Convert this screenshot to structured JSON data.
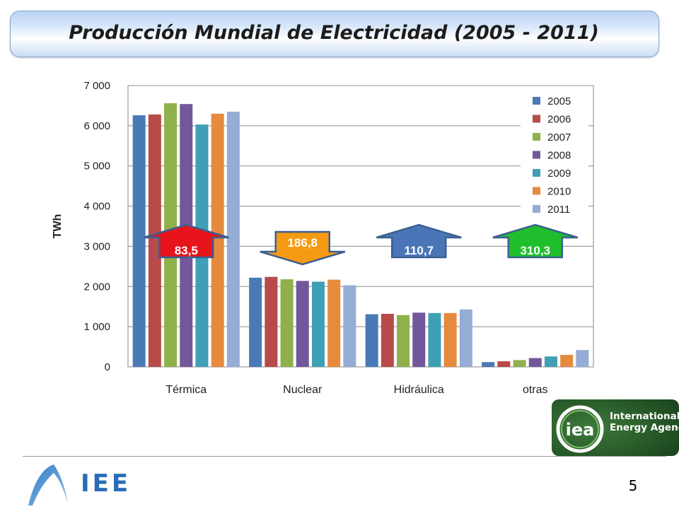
{
  "page": {
    "title": "Producción Mundial de Electricidad  (2005 - 2011)",
    "page_number": "5"
  },
  "logos": {
    "iea_name_line1": "International",
    "iea_name_line2": "Energy Agency",
    "iea_mark": "iea",
    "iee_mark": "IEE"
  },
  "chart_data": {
    "type": "bar",
    "categories": [
      "Térmica",
      "Nuclear",
      "Hidráulica",
      "otras"
    ],
    "ylabel": "TWh",
    "ylim": [
      0,
      7000
    ],
    "yticks": [
      0,
      1000,
      2000,
      3000,
      4000,
      5000,
      6000,
      7000
    ],
    "ytick_labels": [
      "0",
      "1 000",
      "2 000",
      "3 000",
      "4 000",
      "5 000",
      "6 000",
      "7 000"
    ],
    "grid": true,
    "legend_position": "top-right",
    "series": [
      {
        "name": "2005",
        "color": "#4a7ab5",
        "values": [
          6260,
          2220,
          1310,
          120
        ]
      },
      {
        "name": "2006",
        "color": "#b84a4a",
        "values": [
          6280,
          2240,
          1320,
          140
        ]
      },
      {
        "name": "2007",
        "color": "#8fb04a",
        "values": [
          6560,
          2180,
          1290,
          170
        ]
      },
      {
        "name": "2008",
        "color": "#72589a",
        "values": [
          6540,
          2140,
          1350,
          220
        ]
      },
      {
        "name": "2009",
        "color": "#3f9fb5",
        "values": [
          6030,
          2120,
          1340,
          260
        ]
      },
      {
        "name": "2010",
        "color": "#e68a3e",
        "values": [
          6300,
          2170,
          1340,
          300
        ]
      },
      {
        "name": "2011",
        "color": "#95acd4",
        "values": [
          6350,
          2030,
          1430,
          420
        ]
      }
    ],
    "annotations": [
      {
        "category": "Térmica",
        "text": "83,5",
        "direction": "up",
        "color": "#e8141b"
      },
      {
        "category": "Nuclear",
        "text": "186,8",
        "direction": "down",
        "color": "#f59a12"
      },
      {
        "category": "Hidráulica",
        "text": "110,7",
        "direction": "up",
        "color": "#4a76b8"
      },
      {
        "category": "otras",
        "text": "310,3",
        "direction": "up",
        "color": "#1fbe2c"
      }
    ]
  }
}
